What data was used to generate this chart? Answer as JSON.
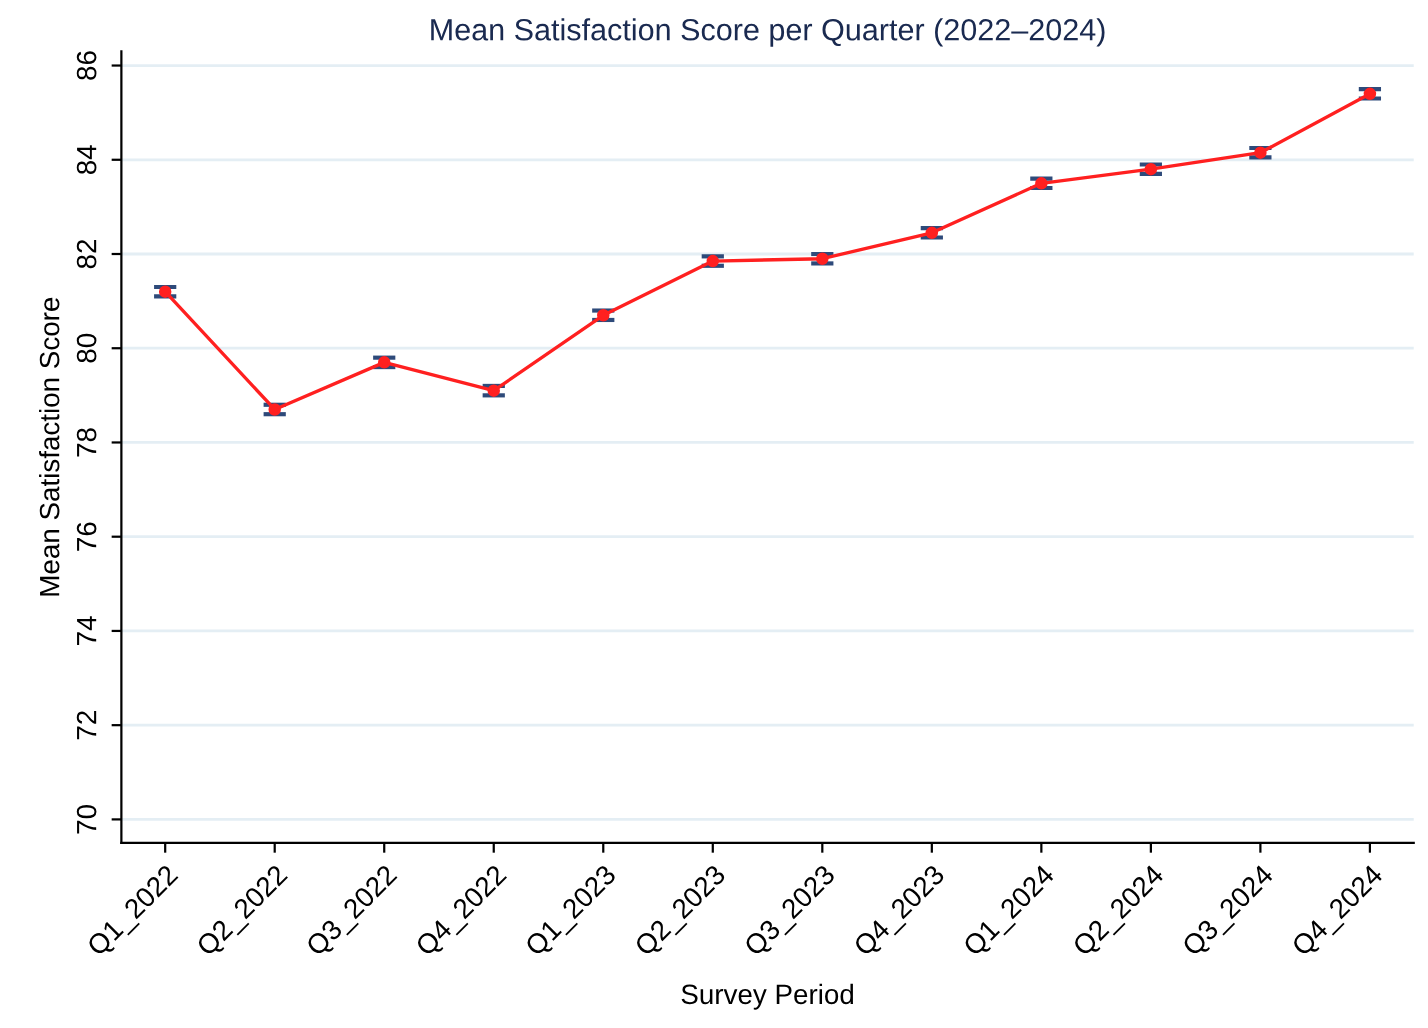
{
  "chart_data": {
    "type": "line",
    "title": "Mean Satisfaction Score per Quarter (2022–2024)",
    "xlabel": "Survey Period",
    "ylabel": "Mean Satisfaction Score",
    "categories": [
      "Q1_2022",
      "Q2_2022",
      "Q3_2022",
      "Q4_2022",
      "Q1_2023",
      "Q2_2023",
      "Q3_2023",
      "Q4_2023",
      "Q1_2024",
      "Q2_2024",
      "Q3_2024",
      "Q4_2024"
    ],
    "series": [
      {
        "color": "#ff2020",
        "values": [
          81.2,
          78.7,
          79.7,
          79.1,
          80.7,
          81.85,
          81.9,
          82.45,
          83.5,
          83.8,
          84.15,
          85.4
        ],
        "errors": [
          0.1,
          0.1,
          0.1,
          0.1,
          0.1,
          0.1,
          0.1,
          0.1,
          0.1,
          0.1,
          0.1,
          0.1
        ]
      }
    ],
    "ylim": [
      69.5,
      86.3
    ],
    "yticks": [
      70,
      72,
      74,
      76,
      78,
      80,
      82,
      84,
      86
    ],
    "grid": "y",
    "marker": "circle",
    "line_style": "solid",
    "legend": false
  }
}
